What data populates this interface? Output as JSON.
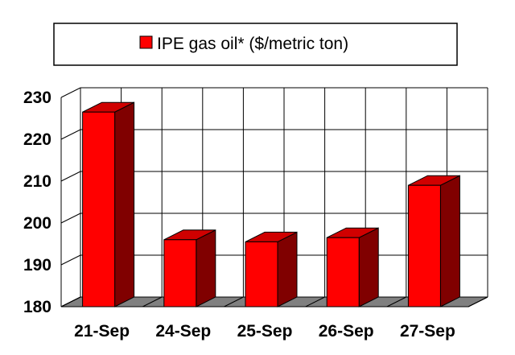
{
  "chart_data": {
    "type": "bar",
    "categories": [
      "21-Sep",
      "24-Sep",
      "25-Sep",
      "26-Sep",
      "27-Sep"
    ],
    "series": [
      {
        "name": "IPE gas oil* ($/metric ton)",
        "values": [
          226.5,
          196,
          195.5,
          196.5,
          209
        ]
      }
    ],
    "ylim": [
      180,
      230
    ],
    "yticks": [
      180,
      190,
      200,
      210,
      220,
      230
    ],
    "grid": true,
    "legend": "top",
    "colors": {
      "bar_front": "#ff0000",
      "bar_side": "#800000",
      "bar_top": "#d00000",
      "floor": "#808080",
      "grid": "#000000"
    }
  }
}
